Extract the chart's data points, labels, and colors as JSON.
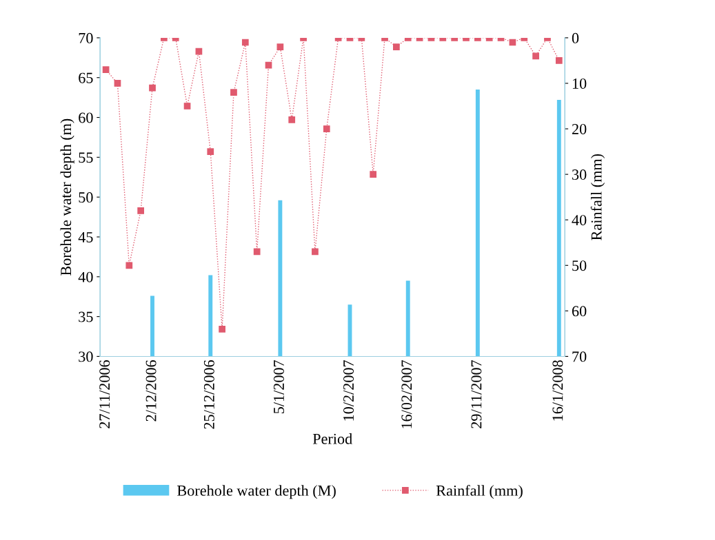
{
  "chart_data": {
    "type": "bar",
    "xlabel": "Period",
    "ylabel": "Borehole water depth (m)",
    "y2label": "Rainfall (mm)",
    "categories": [
      "27/11/2006",
      null,
      null,
      null,
      "2/12/2006",
      null,
      null,
      null,
      null,
      "25/12/2006",
      null,
      null,
      null,
      null,
      null,
      "5/1/2007",
      null,
      null,
      null,
      null,
      null,
      "10/2/2007",
      null,
      null,
      null,
      null,
      "16/02/2007",
      null,
      null,
      null,
      null,
      null,
      "29/11/2007",
      null,
      null,
      null,
      null,
      null,
      null,
      "16/1/2008"
    ],
    "series": [
      {
        "name": "Borehole water depth (M)",
        "color": "#5bc8f0",
        "values": [
          null,
          null,
          null,
          null,
          37.6,
          null,
          null,
          null,
          null,
          40.2,
          null,
          null,
          null,
          null,
          null,
          49.6,
          null,
          null,
          null,
          null,
          null,
          36.5,
          null,
          null,
          null,
          null,
          39.5,
          null,
          null,
          null,
          null,
          null,
          63.5,
          null,
          null,
          null,
          null,
          null,
          null,
          62.2
        ]
      },
      {
        "name": "Rainfall (mm)",
        "type": "line",
        "axis": "y2",
        "color": "#e05a6e",
        "marker": "square",
        "line_style": "dotted",
        "values": [
          7,
          10,
          50,
          38,
          11,
          0,
          0,
          15,
          3,
          25,
          64,
          12,
          1,
          47,
          6,
          2,
          18,
          0,
          47,
          20,
          0,
          0,
          0,
          30,
          0,
          2,
          0,
          0,
          0,
          0,
          0,
          0,
          0,
          0,
          0,
          1,
          0,
          4,
          0,
          5
        ]
      }
    ],
    "ylim": [
      30,
      70
    ],
    "yticks": [
      30,
      35,
      40,
      45,
      50,
      55,
      60,
      65,
      70
    ],
    "y2lim": [
      70,
      0
    ],
    "y2ticks": [
      0,
      10,
      20,
      30,
      40,
      50,
      60,
      70
    ],
    "grid": false,
    "legend": "bottom"
  }
}
